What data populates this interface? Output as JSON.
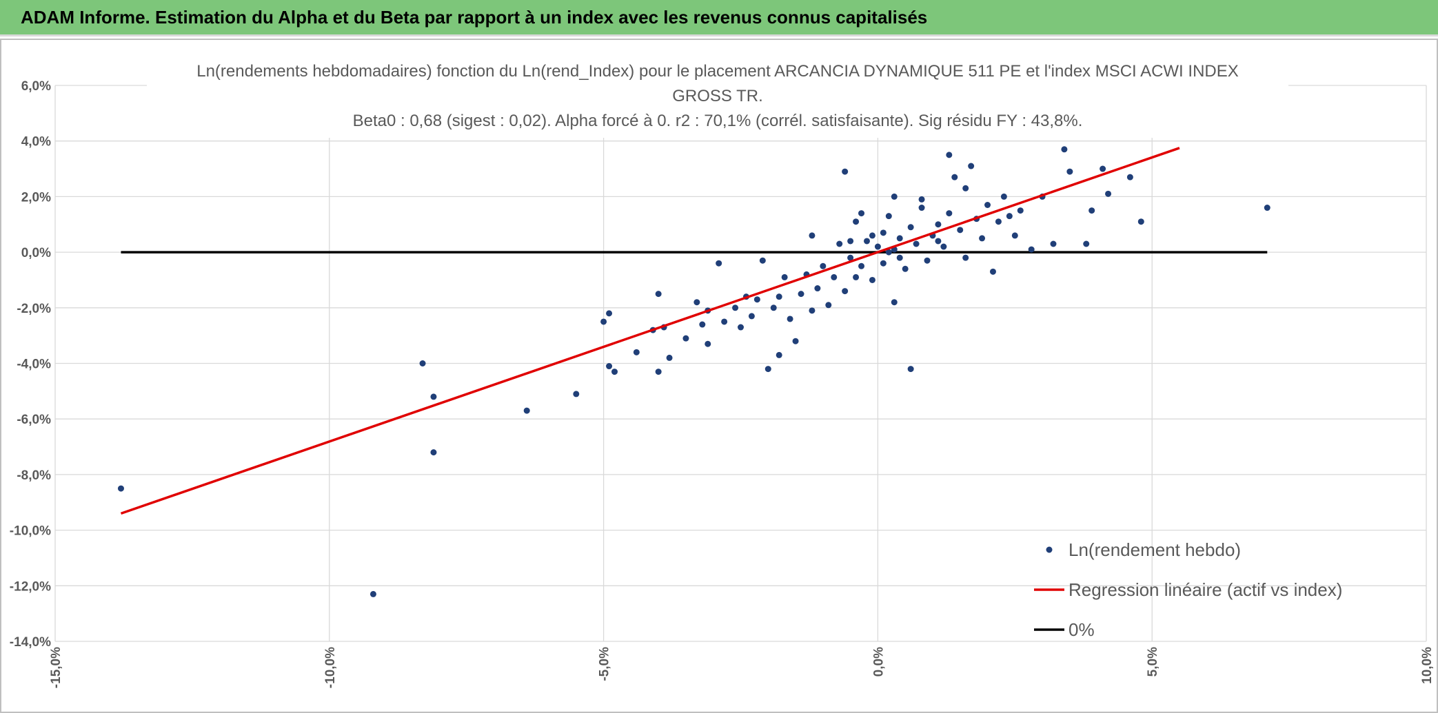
{
  "header": {
    "title": "ADAM Informe. Estimation du Alpha et du Beta par rapport à un index avec les revenus connus capitalisés"
  },
  "chart_data": {
    "type": "scatter",
    "title": "Ln(rendements hebdomadaires) fonction du Ln(rend_Index) pour le placement ARCANCIA DYNAMIQUE 511 PE et l'index MSCI ACWI INDEX GROSS TR.",
    "subtitle": "Beta0 : 0,68 (sigest : 0,02). Alpha forcé à 0. r2 : 70,1% (corrél. satisfaisante). Sig résidu FY : 43,8%.",
    "xlim": [
      -15,
      10
    ],
    "ylim": [
      -14,
      6
    ],
    "xticks": [
      {
        "value": -15,
        "label": "-15,0%"
      },
      {
        "value": -10,
        "label": "-10,0%"
      },
      {
        "value": -5,
        "label": "-5,0%"
      },
      {
        "value": 0,
        "label": "0,0%"
      },
      {
        "value": 5,
        "label": "5,0%"
      },
      {
        "value": 10,
        "label": "10,0%"
      }
    ],
    "yticks": [
      {
        "value": 6,
        "label": "6,0%"
      },
      {
        "value": 4,
        "label": "4,0%"
      },
      {
        "value": 2,
        "label": "2,0%"
      },
      {
        "value": 0,
        "label": "0,0%"
      },
      {
        "value": -2,
        "label": "-2,0%"
      },
      {
        "value": -4,
        "label": "-4,0%"
      },
      {
        "value": -6,
        "label": "-6,0%"
      },
      {
        "value": -8,
        "label": "-8,0%"
      },
      {
        "value": -10,
        "label": "-10,0%"
      },
      {
        "value": -12,
        "label": "-12,0%"
      },
      {
        "value": -14,
        "label": "-14,0%"
      }
    ],
    "grid": true,
    "series": [
      {
        "name": "Ln(rendement hebdo)",
        "style": "marker",
        "color": "#203f78",
        "x": [
          -13.8,
          -9.2,
          -8.3,
          -8.1,
          -8.1,
          -6.4,
          -5.5,
          -5.0,
          -4.9,
          -4.9,
          -4.8,
          -4.4,
          -4.1,
          -4.0,
          -4.0,
          -3.9,
          -3.8,
          -3.5,
          -3.3,
          -3.2,
          -3.1,
          -3.1,
          -2.9,
          -2.8,
          -2.6,
          -2.5,
          -2.4,
          -2.3,
          -2.2,
          -2.1,
          -2.0,
          -1.9,
          -1.8,
          -1.8,
          -1.7,
          -1.6,
          -1.5,
          -1.4,
          -1.3,
          -1.2,
          -1.1,
          -1.0,
          -0.9,
          -0.8,
          -0.7,
          -0.6,
          -0.5,
          -0.4,
          -0.4,
          -0.3,
          -0.2,
          -0.1,
          0.0,
          0.1,
          0.1,
          0.2,
          0.3,
          0.3,
          0.4,
          0.5,
          0.6,
          0.6,
          0.7,
          0.8,
          0.9,
          1.0,
          1.1,
          1.2,
          1.3,
          1.4,
          1.5,
          1.6,
          1.7,
          1.8,
          1.9,
          2.0,
          2.1,
          2.2,
          2.3,
          2.5,
          2.6,
          2.8,
          3.0,
          3.2,
          3.4,
          3.5,
          3.8,
          3.9,
          4.1,
          4.2,
          4.6,
          4.8,
          7.1,
          -0.6,
          0.3,
          1.3,
          -1.2,
          -0.3,
          0.8,
          1.6,
          2.4,
          -0.1,
          0.4,
          1.1,
          0.2,
          -0.5
        ],
        "values": [
          -8.5,
          -12.3,
          -4.0,
          -5.2,
          -7.2,
          -5.7,
          -5.1,
          -2.5,
          -2.2,
          -4.1,
          -4.3,
          -3.6,
          -2.8,
          -1.5,
          -4.3,
          -2.7,
          -3.8,
          -3.1,
          -1.8,
          -2.6,
          -2.1,
          -3.3,
          -0.4,
          -2.5,
          -2.0,
          -2.7,
          -1.6,
          -2.3,
          -1.7,
          -0.3,
          -4.2,
          -2.0,
          -3.7,
          -1.6,
          -0.9,
          -2.4,
          -3.2,
          -1.5,
          -0.8,
          -2.1,
          -1.3,
          -0.5,
          -1.9,
          -0.9,
          0.3,
          -1.4,
          -0.2,
          -0.9,
          1.1,
          -0.5,
          0.4,
          -1.0,
          0.2,
          -0.4,
          0.7,
          1.3,
          -1.8,
          0.1,
          0.5,
          -0.6,
          0.9,
          -4.2,
          0.3,
          1.6,
          -0.3,
          0.6,
          1.0,
          0.2,
          1.4,
          2.7,
          0.8,
          -0.2,
          3.1,
          1.2,
          0.5,
          1.7,
          -0.7,
          1.1,
          2.0,
          0.6,
          1.5,
          0.1,
          2.0,
          0.3,
          3.7,
          2.9,
          0.3,
          1.5,
          3.0,
          2.1,
          2.7,
          1.1,
          1.6,
          2.9,
          2.0,
          3.5,
          0.6,
          1.4,
          1.9,
          2.3,
          1.3,
          0.6,
          -0.2,
          0.4,
          0.0,
          0.4
        ]
      },
      {
        "name": "Regression linéaire (actif vs index)",
        "style": "line",
        "color": "#e00000",
        "x": [
          -13.8,
          5.5
        ],
        "values": [
          -9.4,
          3.75
        ]
      },
      {
        "name": "0%",
        "style": "line",
        "color": "#000000",
        "x": [
          -13.8,
          7.1
        ],
        "values": [
          0,
          0
        ]
      }
    ]
  }
}
